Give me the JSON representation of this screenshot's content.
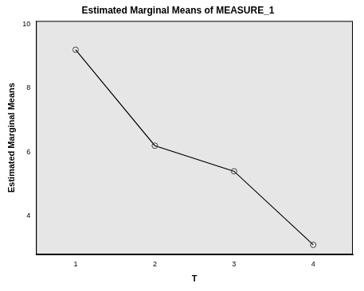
{
  "chart_data": {
    "type": "line",
    "title": "Estimated Marginal Means of MEASURE_1",
    "x_label": "T",
    "y_label": "Estimated Marginal Means",
    "categories": [
      "1",
      "2",
      "3",
      "4"
    ],
    "values": [
      9.2,
      6.2,
      5.4,
      3.1
    ],
    "color": "#000000",
    "marker": "circle",
    "ylim": [
      2.8,
      10.1
    ],
    "yticks": [
      4,
      6,
      8,
      10
    ],
    "grid": false
  }
}
